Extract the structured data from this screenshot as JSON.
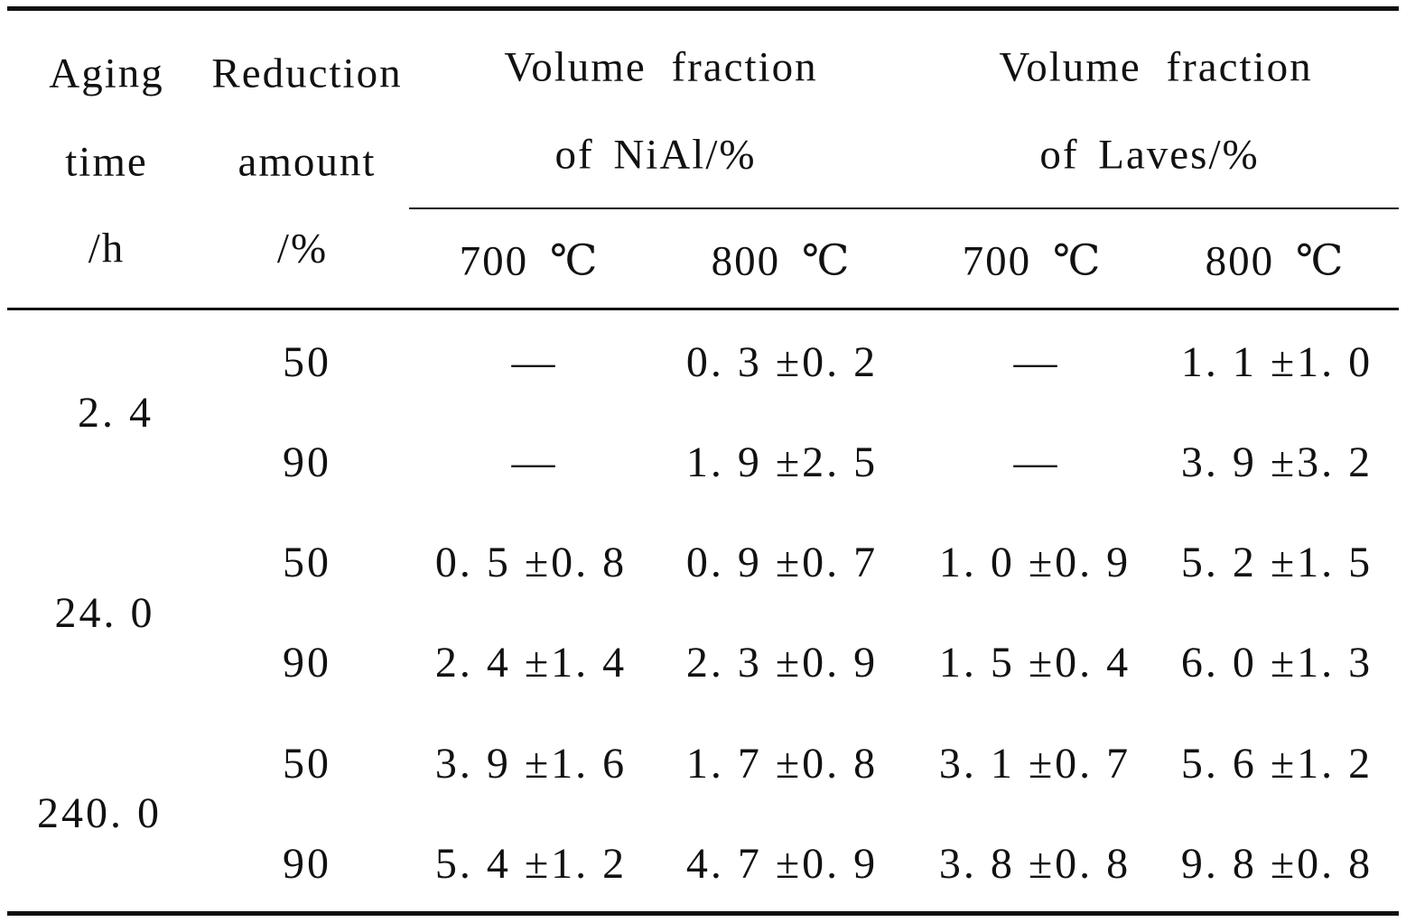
{
  "table": {
    "headers": {
      "aging": [
        "Aging",
        "time",
        "/h"
      ],
      "reduction": [
        "Reduction",
        "amount",
        "/%"
      ],
      "nial": [
        "Volume fraction",
        "of NiAl/%"
      ],
      "laves": [
        "Volume fraction",
        "of Laves/%"
      ],
      "temps": [
        "700 ℃",
        "800 ℃",
        "700 ℃",
        "800 ℃"
      ]
    },
    "groups": [
      {
        "aging_time": "2. 4",
        "rows": [
          {
            "reduction": "50",
            "nial_700": "—",
            "nial_800": "0. 3 ±0. 2",
            "laves_700": "—",
            "laves_800": "1. 1 ±1. 0"
          },
          {
            "reduction": "90",
            "nial_700": "—",
            "nial_800": "1. 9 ±2. 5",
            "laves_700": "—",
            "laves_800": "3. 9 ±3. 2"
          }
        ]
      },
      {
        "aging_time": "24. 0",
        "rows": [
          {
            "reduction": "50",
            "nial_700": "0. 5 ±0. 8",
            "nial_800": "0. 9 ±0. 7",
            "laves_700": "1. 0 ±0. 9",
            "laves_800": "5. 2 ±1. 5"
          },
          {
            "reduction": "90",
            "nial_700": "2. 4 ±1. 4",
            "nial_800": "2. 3 ±0. 9",
            "laves_700": "1. 5 ±0. 4",
            "laves_800": "6. 0 ±1. 3"
          }
        ]
      },
      {
        "aging_time": "240. 0",
        "rows": [
          {
            "reduction": "50",
            "nial_700": "3. 9 ±1. 6",
            "nial_800": "1. 7 ±0. 8",
            "laves_700": "3. 1 ±0. 7",
            "laves_800": "5. 6 ±1. 2"
          },
          {
            "reduction": "90",
            "nial_700": "5. 4 ±1. 2",
            "nial_800": "4. 7 ±0. 9",
            "laves_700": "3. 8 ±0. 8",
            "laves_800": "9. 8 ±0. 8"
          }
        ]
      }
    ]
  }
}
